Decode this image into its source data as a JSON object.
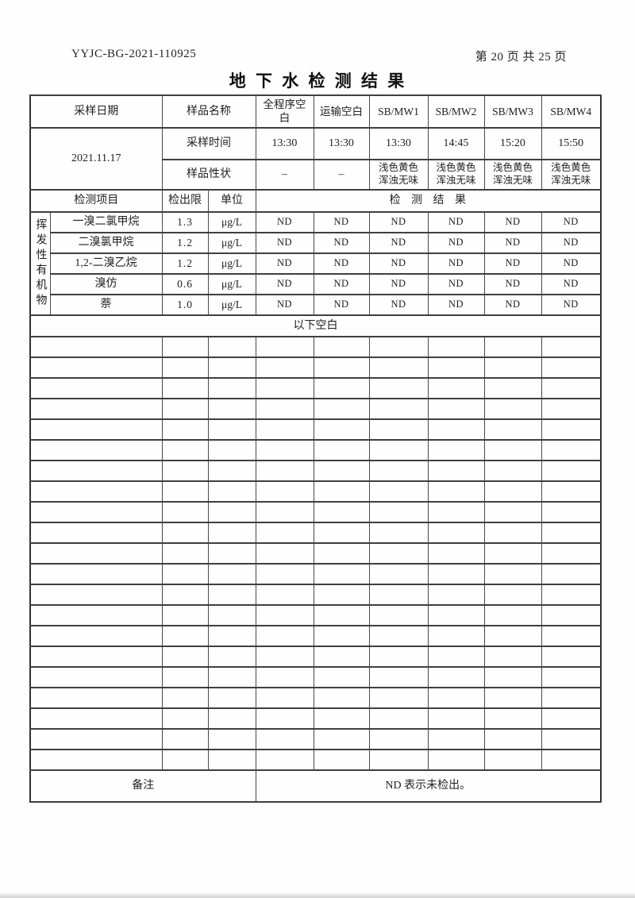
{
  "page_header": {
    "doc_number": "YYJC-BG-2021-110925",
    "page_info": "第 20 页 共 25 页"
  },
  "title": "地 下 水 检 测 结 果",
  "table": {
    "sampling_date_label": "采样日期",
    "sampling_date": "2021.11.17",
    "sample_name_label": "样品名称",
    "sampling_time_label": "采样时间",
    "sample_trait_label": "样品性状",
    "columns": [
      {
        "name": "全程序空白",
        "time": "13:30",
        "trait": "–"
      },
      {
        "name": "运输空白",
        "time": "13:30",
        "trait": "–"
      },
      {
        "name": "SB/MW1",
        "time": "13:30",
        "trait": "浅色黄色浑浊无味"
      },
      {
        "name": "SB/MW2",
        "time": "14:45",
        "trait": "浅色黄色浑浊无味"
      },
      {
        "name": "SB/MW3",
        "time": "15:20",
        "trait": "浅色黄色浑浊无味"
      },
      {
        "name": "SB/MW4",
        "time": "15:50",
        "trait": "浅色黄色浑浊无味"
      }
    ],
    "detection_item_label": "检测项目",
    "detection_limit_label": "检出限",
    "unit_label": "单位",
    "result_label": "检 测 结 果",
    "group_label": "挥发性有机物",
    "items": [
      {
        "name": "一溴二氯甲烷",
        "limit": "1.3",
        "unit": "μg/L",
        "results": [
          "ND",
          "ND",
          "ND",
          "ND",
          "ND",
          "ND"
        ]
      },
      {
        "name": "二溴氯甲烷",
        "limit": "1.2",
        "unit": "μg/L",
        "results": [
          "ND",
          "ND",
          "ND",
          "ND",
          "ND",
          "ND"
        ]
      },
      {
        "name": "1,2-二溴乙烷",
        "limit": "1.2",
        "unit": "μg/L",
        "results": [
          "ND",
          "ND",
          "ND",
          "ND",
          "ND",
          "ND"
        ]
      },
      {
        "name": "溴仿",
        "limit": "0.6",
        "unit": "μg/L",
        "results": [
          "ND",
          "ND",
          "ND",
          "ND",
          "ND",
          "ND"
        ]
      },
      {
        "name": "萘",
        "limit": "1.0",
        "unit": "μg/L",
        "results": [
          "ND",
          "ND",
          "ND",
          "ND",
          "ND",
          "ND"
        ]
      }
    ],
    "blank_below_text": "以下空白",
    "empty_row_count": 21,
    "remark_label": "备注",
    "remark_text": "ND 表示未检出。"
  }
}
